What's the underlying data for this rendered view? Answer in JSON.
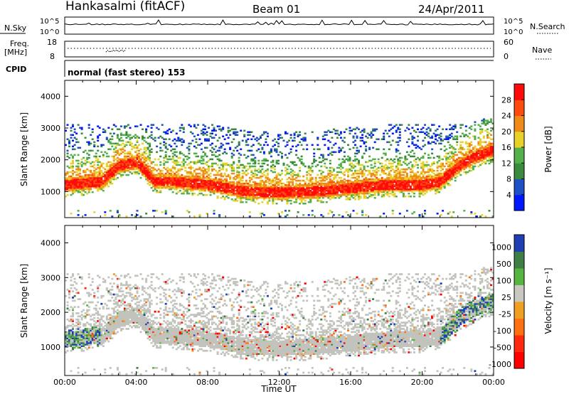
{
  "header": {
    "station": "Hankasalmi (fitACF)",
    "beam": "Beam 01",
    "date": "24/Apr/2011"
  },
  "summary": {
    "nsky_label": "N.Sky",
    "nsearch_label": "N.Search",
    "nave_label": "Nave",
    "freq_label": "Freq.",
    "freq_unit": "[MHz]",
    "cpid_label": "CPID",
    "cpid_text": "normal (fast stereo) 153",
    "nsky_ticks": [
      "10^5",
      "10^0"
    ],
    "nsearch_ticks": [
      "10^5",
      "10^0"
    ],
    "freq_ticks": [
      "18",
      "8"
    ],
    "nave_ticks": [
      "60",
      "0"
    ]
  },
  "colors": {
    "power_scale": [
      "#0018ff",
      "#1f4fc7",
      "#3a8a3e",
      "#54b04a",
      "#e8d22a",
      "#f08a18",
      "#ff4a10",
      "#ff0a0a"
    ],
    "velocity_scale": [
      "#1f3fb5",
      "#3d7f44",
      "#55b540",
      "#c8c8c0",
      "#f0a020",
      "#ff7010",
      "#ff2a10",
      "#ff0000"
    ],
    "ground_scatter": "#c3c3bd"
  },
  "chart_data": [
    {
      "type": "heatmap",
      "panel": "power",
      "xlabel": "Time UT",
      "ylabel": "Slant Range [km]",
      "x_ticks": [
        "00:00",
        "04:00",
        "08:00",
        "12:00",
        "16:00",
        "20:00",
        "00:00"
      ],
      "xlim": [
        0,
        24
      ],
      "y_ticks": [
        "1000",
        "2000",
        "3000",
        "4000"
      ],
      "ylim": [
        180,
        4500
      ],
      "colorbar_label": "Power [dB]",
      "colorbar_ticks": [
        "4",
        "8",
        "12",
        "16",
        "20",
        "24",
        "28"
      ],
      "colorbar_range": [
        0,
        32
      ],
      "main_echo_band": {
        "hours": [
          0,
          2,
          3,
          4,
          5,
          6,
          8,
          10,
          12,
          14,
          16,
          18,
          20,
          21,
          22,
          23,
          24
        ],
        "center_range_km": [
          1200,
          1300,
          1800,
          1900,
          1300,
          1300,
          1200,
          1000,
          950,
          1000,
          1100,
          1200,
          1200,
          1300,
          1800,
          2100,
          2300
        ]
      }
    },
    {
      "type": "heatmap",
      "panel": "velocity",
      "xlabel": "Time UT",
      "ylabel": "Slant Range [km]",
      "x_ticks": [
        "00:00",
        "04:00",
        "08:00",
        "12:00",
        "16:00",
        "20:00",
        "00:00"
      ],
      "xlim": [
        0,
        24
      ],
      "y_ticks": [
        "1000",
        "2000",
        "3000",
        "4000"
      ],
      "ylim": [
        180,
        4500
      ],
      "colorbar_label": "Velocity [m s⁻¹]",
      "colorbar_ticks": [
        "1000",
        "500",
        "100",
        "25",
        "-25",
        "-100",
        "-500",
        "-1000"
      ]
    }
  ]
}
